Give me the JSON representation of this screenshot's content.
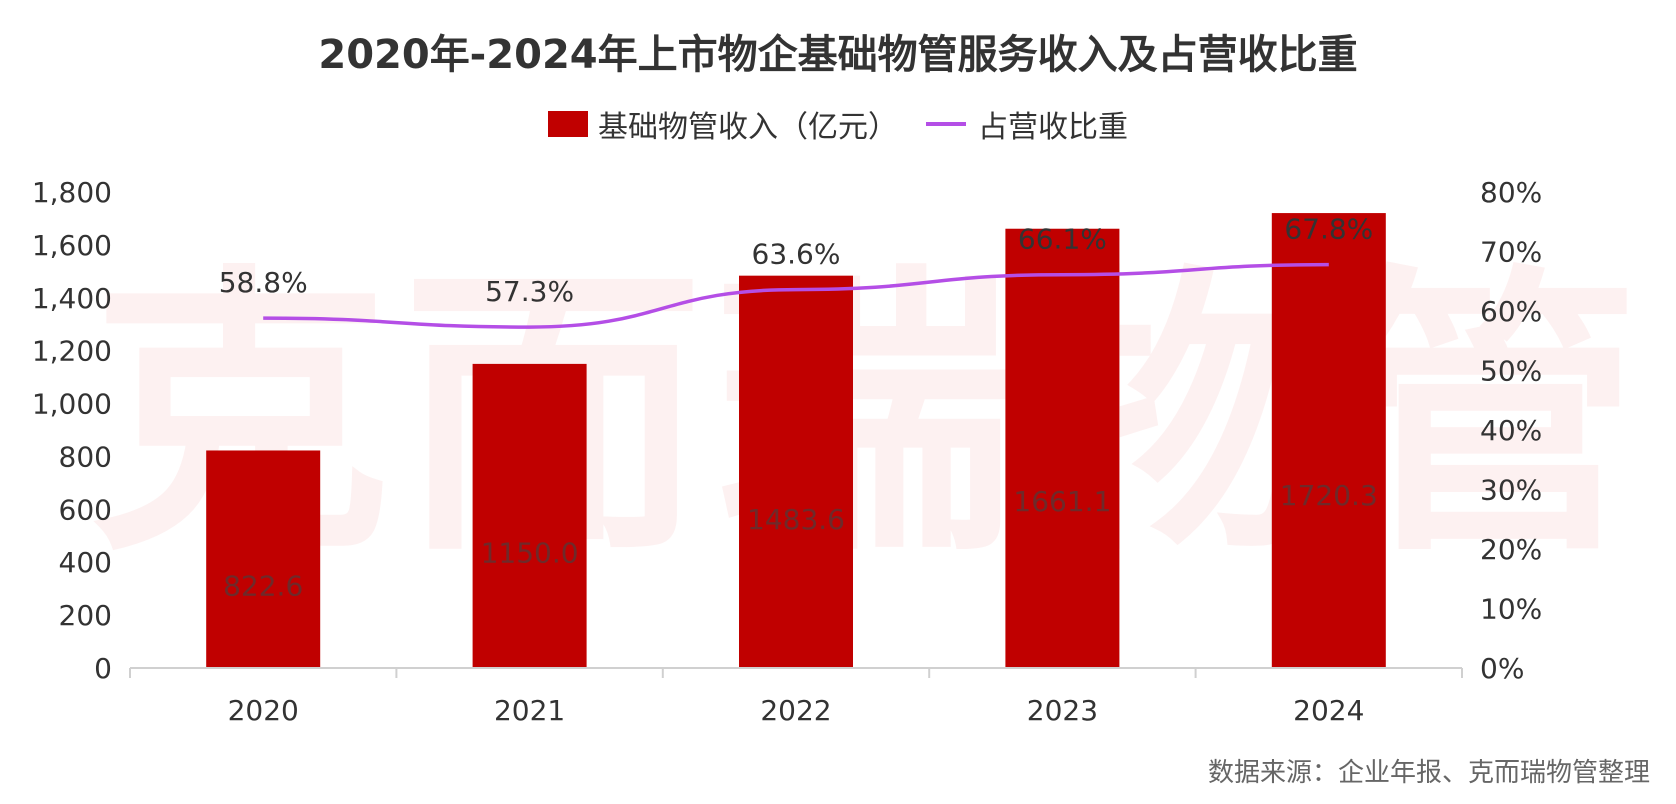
{
  "title": "2020年-2024年上市物企基础物管服务收入及占营收比重",
  "source": "数据来源：企业年报、克而瑞物管整理",
  "watermark": [
    "克",
    "而",
    "瑞",
    "物",
    "管"
  ],
  "colors": {
    "bar": "#c00000",
    "line": "#b44ee6",
    "axis": "#d0d0d0",
    "text": "#333333"
  },
  "chart_data": {
    "type": "bar",
    "categories": [
      "2020",
      "2021",
      "2022",
      "2023",
      "2024"
    ],
    "series": [
      {
        "name": "基础物管收入（亿元）",
        "type": "bar",
        "axis": "left",
        "values": [
          822.6,
          1150.0,
          1483.6,
          1661.1,
          1720.3
        ],
        "labels": [
          "822.6",
          "1150.0",
          "1483.6",
          "1661.1",
          "1720.3"
        ]
      },
      {
        "name": "占营收比重",
        "type": "line",
        "axis": "right",
        "values": [
          58.8,
          57.3,
          63.6,
          66.1,
          67.8
        ],
        "labels": [
          "58.8%",
          "57.3%",
          "63.6%",
          "66.1%",
          "67.8%"
        ]
      }
    ],
    "y_left": {
      "min": 0,
      "max": 1800,
      "ticks": [
        0,
        200,
        400,
        600,
        800,
        1000,
        1200,
        1400,
        1600,
        1800
      ],
      "tick_labels": [
        "0",
        "200",
        "400",
        "600",
        "800",
        "1,000",
        "1,200",
        "1,400",
        "1,600",
        "1,800"
      ]
    },
    "y_right": {
      "min": 0,
      "max": 80,
      "ticks": [
        0,
        10,
        20,
        30,
        40,
        50,
        60,
        70,
        80
      ],
      "tick_labels": [
        "0%",
        "10%",
        "20%",
        "30%",
        "40%",
        "50%",
        "60%",
        "70%",
        "80%"
      ]
    },
    "grid": false,
    "legend_position": "top"
  }
}
